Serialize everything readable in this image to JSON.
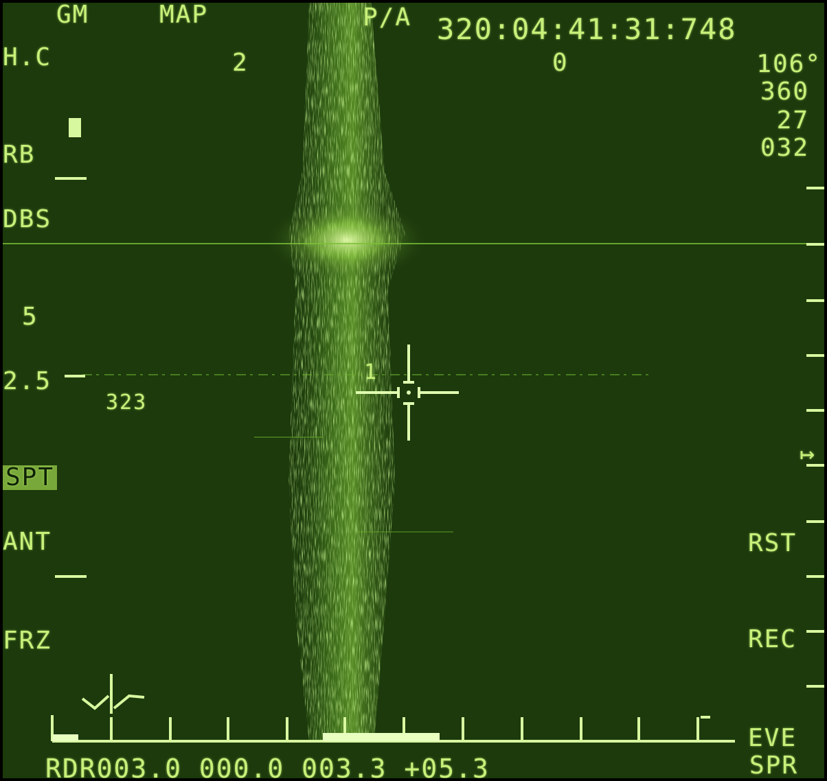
{
  "colors": {
    "background": "#1c3a0c",
    "symbology": "#c8f07a",
    "return": "#a8e050"
  },
  "top": {
    "mode": "GM",
    "submode": "MAP",
    "pa": "P/A",
    "timestamp": "320:04:41:31:748"
  },
  "left": {
    "hc": "H.C",
    "rb": "RB",
    "dbs": "DBS",
    "range5": "5",
    "range25": "2.5",
    "bearing": "323",
    "spt": "SPT",
    "ant": "ANT",
    "frz": "FRZ"
  },
  "header_values": {
    "left_num": "2",
    "mid_num": "0"
  },
  "right": {
    "heading": "106°",
    "v1": "360",
    "v2": "27",
    "v3": "032",
    "rst": "RST",
    "rec": "REC",
    "eve": "EVE",
    "spr": "SPR",
    "arrow_icon": "right-arrow-icon"
  },
  "cursor": {
    "label": "1"
  },
  "bottom": {
    "readout": "RDR003.0 000.0 003.3 +05.3"
  }
}
